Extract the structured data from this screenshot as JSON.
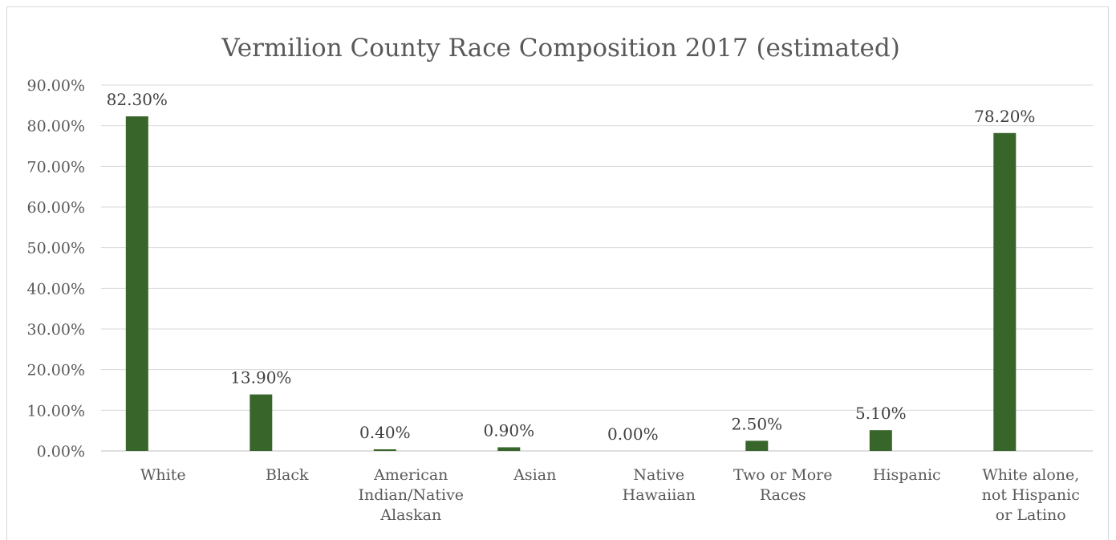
{
  "chart_data": {
    "type": "bar",
    "title": "Vermilion County Race Composition 2017 (estimated)",
    "categories": [
      [
        "White"
      ],
      [
        "Black"
      ],
      [
        "American",
        "Indian/Native",
        "Alaskan"
      ],
      [
        "Asian"
      ],
      [
        "Native",
        "Hawaiian"
      ],
      [
        "Two or More",
        "Races"
      ],
      [
        "Hispanic"
      ],
      [
        "White alone,",
        "not Hispanic",
        "or Latino"
      ]
    ],
    "values": [
      82.3,
      13.9,
      0.4,
      0.9,
      0.0,
      2.5,
      5.1,
      78.2
    ],
    "data_labels": [
      "82.30%",
      "13.90%",
      "0.40%",
      "0.90%",
      "0.00%",
      "2.50%",
      "5.10%",
      "78.20%"
    ],
    "y_ticks": [
      "0.00%",
      "10.00%",
      "20.00%",
      "30.00%",
      "40.00%",
      "50.00%",
      "60.00%",
      "70.00%",
      "80.00%",
      "90.00%"
    ],
    "ylim": [
      0,
      90
    ],
    "grid": true,
    "bar_color": "#38652a",
    "grid_color": "#d9d9d9",
    "axis_color": "#bfbfbf"
  }
}
